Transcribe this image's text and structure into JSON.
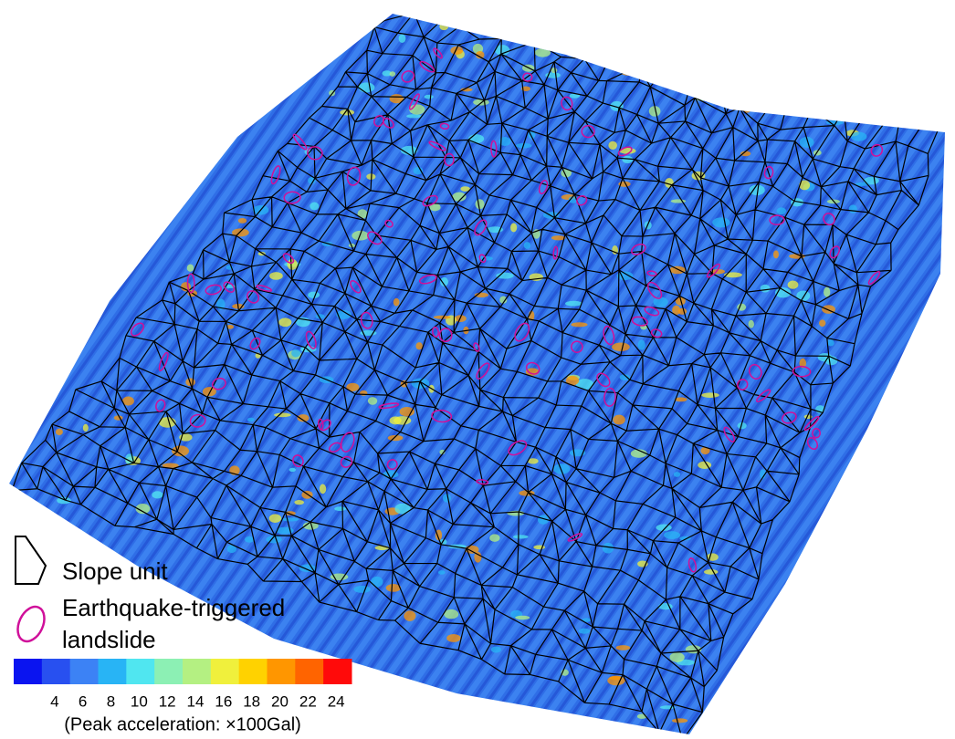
{
  "legend": {
    "slope_unit": "Slope unit",
    "landslide": [
      "Earthquake-triggered",
      "landslide"
    ],
    "colorbar": {
      "colors": [
        "#0a14f0",
        "#2850f0",
        "#3c82f5",
        "#28b4f5",
        "#50e6f0",
        "#8cf0b4",
        "#b4f082",
        "#f0f03c",
        "#ffd200",
        "#ff9600",
        "#ff6400",
        "#ff0a0a"
      ],
      "ticks": [
        4,
        6,
        8,
        10,
        12,
        14,
        16,
        18,
        20,
        22,
        24
      ],
      "label": "(Peak acceleration: ×100Gal)"
    }
  }
}
